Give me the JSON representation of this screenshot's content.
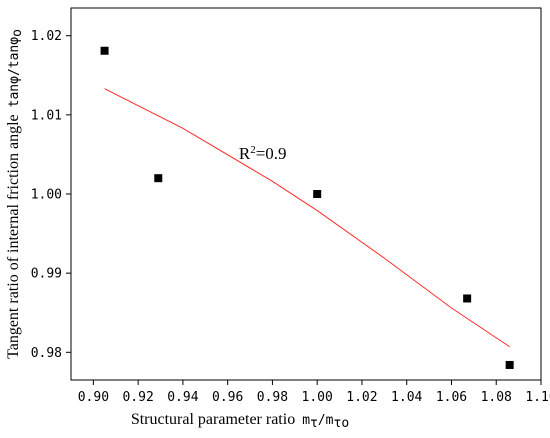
{
  "chart_data": {
    "type": "scatter",
    "xlabel_text": "Structural parameter ratio",
    "xlabel_symbol": "m",
    "xlabel_symbol_sub": "τ",
    "xlabel_slash": "/m",
    "xlabel_symbol2_sub": "τo",
    "ylabel_text": "Tangent ratio of internal friction angle",
    "ylabel_symbol": "tanφ/tanφ",
    "ylabel_symbol_sub": "o",
    "xlim": [
      0.89,
      1.1
    ],
    "ylim": [
      0.9765,
      1.0235
    ],
    "xticks": [
      0.9,
      0.92,
      0.94,
      0.96,
      0.98,
      1.0,
      1.02,
      1.04,
      1.06,
      1.08,
      1.1
    ],
    "xtick_labels": [
      "0.90",
      "0.92",
      "0.94",
      "0.96",
      "0.98",
      "1.00",
      "1.02",
      "1.04",
      "1.06",
      "1.08",
      "1.10"
    ],
    "yticks": [
      0.98,
      0.99,
      1.0,
      1.01,
      1.02
    ],
    "ytick_labels": [
      "0.98",
      "0.99",
      "1.00",
      "1.01",
      "1.02"
    ],
    "points": [
      {
        "x": 0.905,
        "y": 1.0181
      },
      {
        "x": 0.929,
        "y": 1.002
      },
      {
        "x": 1.0,
        "y": 1.0
      },
      {
        "x": 1.067,
        "y": 0.9868
      },
      {
        "x": 1.086,
        "y": 0.9784
      }
    ],
    "fit": {
      "x": [
        0.905,
        0.94,
        0.98,
        1.0,
        1.03,
        1.06,
        1.086
      ],
      "y": [
        1.0133,
        1.0083,
        1.0016,
        0.9979,
        0.9919,
        0.9856,
        0.9807
      ]
    },
    "fit_color": "#ff2a2a",
    "marker_color": "#000000",
    "annotation": {
      "base": "R",
      "sup": "2",
      "rest": "=0.9",
      "x": 0.965,
      "y": 1.0044
    }
  }
}
